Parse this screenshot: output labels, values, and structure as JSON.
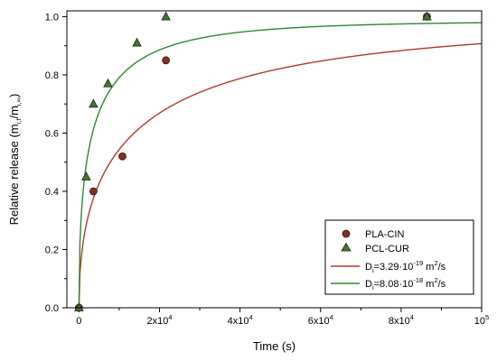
{
  "chart_data": {
    "type": "scatter",
    "xlabel": "Time (s)",
    "ylabel_main": "Relative release (m",
    "ylabel_sub1": "i,t",
    "ylabel_mid": "/m",
    "ylabel_sub2": "i,∞",
    "ylabel_end": ")",
    "xlim": [
      -3000,
      100000
    ],
    "ylim": [
      0,
      1.02
    ],
    "x_ticks": [
      {
        "value": 0,
        "label": "0",
        "exp": ""
      },
      {
        "value": 20000,
        "label": "2x10",
        "exp": "4"
      },
      {
        "value": 40000,
        "label": "4x10",
        "exp": "4"
      },
      {
        "value": 60000,
        "label": "6x10",
        "exp": "4"
      },
      {
        "value": 80000,
        "label": "8x10",
        "exp": "4"
      },
      {
        "value": 100000,
        "label": "10",
        "exp": "5"
      }
    ],
    "y_ticks": [
      {
        "value": 0.0,
        "label": "0.0"
      },
      {
        "value": 0.2,
        "label": "0.2"
      },
      {
        "value": 0.4,
        "label": "0.4"
      },
      {
        "value": 0.6,
        "label": "0.6"
      },
      {
        "value": 0.8,
        "label": "0.8"
      },
      {
        "value": 1.0,
        "label": "1.0"
      }
    ],
    "legend_position": "bottom-right",
    "series": [
      {
        "name": "PLA-CIN",
        "marker": "circle",
        "color": "#8b2a1e",
        "points": [
          {
            "x": 0,
            "y": 0.0
          },
          {
            "x": 3600,
            "y": 0.4
          },
          {
            "x": 10800,
            "y": 0.52
          },
          {
            "x": 21600,
            "y": 0.85
          },
          {
            "x": 86400,
            "y": 1.0
          }
        ]
      },
      {
        "name": "PCL-CUR",
        "marker": "triangle",
        "color": "#3d7a2a",
        "points": [
          {
            "x": 0,
            "y": 0.0
          },
          {
            "x": 1800,
            "y": 0.45
          },
          {
            "x": 3600,
            "y": 0.7
          },
          {
            "x": 7200,
            "y": 0.77
          },
          {
            "x": 14400,
            "y": 0.91
          },
          {
            "x": 21600,
            "y": 1.0
          },
          {
            "x": 86400,
            "y": 1.0
          }
        ]
      }
    ],
    "fits": [
      {
        "label_D": "D",
        "label_sub": "i",
        "label_mid": "=3.29·10",
        "label_exp": "-19",
        "label_unit": " m",
        "label_unit_exp": "2",
        "label_end": "/s",
        "color": "#b03a2e",
        "plateau": 0.985,
        "tau": 15500
      },
      {
        "label_D": "D",
        "label_sub": "i",
        "label_mid": "=8.08·10",
        "label_exp": "-18",
        "label_unit": " m",
        "label_unit_exp": "2",
        "label_end": "/s",
        "color": "#2e8b2e",
        "plateau": 0.985,
        "tau": 3800
      }
    ]
  }
}
